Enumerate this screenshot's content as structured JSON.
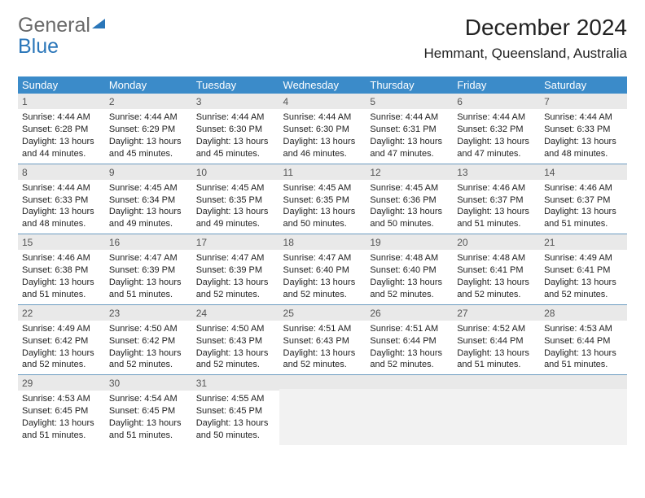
{
  "brand": {
    "word1": "General",
    "word2": "Blue"
  },
  "title": "December 2024",
  "location": "Hemmant, Queensland, Australia",
  "colors": {
    "header_bg": "#3b8bc9",
    "header_text": "#ffffff",
    "daynum_bg": "#e9e9e9",
    "row_border": "#6b9bc0",
    "brand_gray": "#6a6a6a",
    "brand_blue": "#2a76b9"
  },
  "weekdays": [
    "Sunday",
    "Monday",
    "Tuesday",
    "Wednesday",
    "Thursday",
    "Friday",
    "Saturday"
  ],
  "days": [
    {
      "n": "1",
      "sr": "Sunrise: 4:44 AM",
      "ss": "Sunset: 6:28 PM",
      "d1": "Daylight: 13 hours",
      "d2": "and 44 minutes."
    },
    {
      "n": "2",
      "sr": "Sunrise: 4:44 AM",
      "ss": "Sunset: 6:29 PM",
      "d1": "Daylight: 13 hours",
      "d2": "and 45 minutes."
    },
    {
      "n": "3",
      "sr": "Sunrise: 4:44 AM",
      "ss": "Sunset: 6:30 PM",
      "d1": "Daylight: 13 hours",
      "d2": "and 45 minutes."
    },
    {
      "n": "4",
      "sr": "Sunrise: 4:44 AM",
      "ss": "Sunset: 6:30 PM",
      "d1": "Daylight: 13 hours",
      "d2": "and 46 minutes."
    },
    {
      "n": "5",
      "sr": "Sunrise: 4:44 AM",
      "ss": "Sunset: 6:31 PM",
      "d1": "Daylight: 13 hours",
      "d2": "and 47 minutes."
    },
    {
      "n": "6",
      "sr": "Sunrise: 4:44 AM",
      "ss": "Sunset: 6:32 PM",
      "d1": "Daylight: 13 hours",
      "d2": "and 47 minutes."
    },
    {
      "n": "7",
      "sr": "Sunrise: 4:44 AM",
      "ss": "Sunset: 6:33 PM",
      "d1": "Daylight: 13 hours",
      "d2": "and 48 minutes."
    },
    {
      "n": "8",
      "sr": "Sunrise: 4:44 AM",
      "ss": "Sunset: 6:33 PM",
      "d1": "Daylight: 13 hours",
      "d2": "and 48 minutes."
    },
    {
      "n": "9",
      "sr": "Sunrise: 4:45 AM",
      "ss": "Sunset: 6:34 PM",
      "d1": "Daylight: 13 hours",
      "d2": "and 49 minutes."
    },
    {
      "n": "10",
      "sr": "Sunrise: 4:45 AM",
      "ss": "Sunset: 6:35 PM",
      "d1": "Daylight: 13 hours",
      "d2": "and 49 minutes."
    },
    {
      "n": "11",
      "sr": "Sunrise: 4:45 AM",
      "ss": "Sunset: 6:35 PM",
      "d1": "Daylight: 13 hours",
      "d2": "and 50 minutes."
    },
    {
      "n": "12",
      "sr": "Sunrise: 4:45 AM",
      "ss": "Sunset: 6:36 PM",
      "d1": "Daylight: 13 hours",
      "d2": "and 50 minutes."
    },
    {
      "n": "13",
      "sr": "Sunrise: 4:46 AM",
      "ss": "Sunset: 6:37 PM",
      "d1": "Daylight: 13 hours",
      "d2": "and 51 minutes."
    },
    {
      "n": "14",
      "sr": "Sunrise: 4:46 AM",
      "ss": "Sunset: 6:37 PM",
      "d1": "Daylight: 13 hours",
      "d2": "and 51 minutes."
    },
    {
      "n": "15",
      "sr": "Sunrise: 4:46 AM",
      "ss": "Sunset: 6:38 PM",
      "d1": "Daylight: 13 hours",
      "d2": "and 51 minutes."
    },
    {
      "n": "16",
      "sr": "Sunrise: 4:47 AM",
      "ss": "Sunset: 6:39 PM",
      "d1": "Daylight: 13 hours",
      "d2": "and 51 minutes."
    },
    {
      "n": "17",
      "sr": "Sunrise: 4:47 AM",
      "ss": "Sunset: 6:39 PM",
      "d1": "Daylight: 13 hours",
      "d2": "and 52 minutes."
    },
    {
      "n": "18",
      "sr": "Sunrise: 4:47 AM",
      "ss": "Sunset: 6:40 PM",
      "d1": "Daylight: 13 hours",
      "d2": "and 52 minutes."
    },
    {
      "n": "19",
      "sr": "Sunrise: 4:48 AM",
      "ss": "Sunset: 6:40 PM",
      "d1": "Daylight: 13 hours",
      "d2": "and 52 minutes."
    },
    {
      "n": "20",
      "sr": "Sunrise: 4:48 AM",
      "ss": "Sunset: 6:41 PM",
      "d1": "Daylight: 13 hours",
      "d2": "and 52 minutes."
    },
    {
      "n": "21",
      "sr": "Sunrise: 4:49 AM",
      "ss": "Sunset: 6:41 PM",
      "d1": "Daylight: 13 hours",
      "d2": "and 52 minutes."
    },
    {
      "n": "22",
      "sr": "Sunrise: 4:49 AM",
      "ss": "Sunset: 6:42 PM",
      "d1": "Daylight: 13 hours",
      "d2": "and 52 minutes."
    },
    {
      "n": "23",
      "sr": "Sunrise: 4:50 AM",
      "ss": "Sunset: 6:42 PM",
      "d1": "Daylight: 13 hours",
      "d2": "and 52 minutes."
    },
    {
      "n": "24",
      "sr": "Sunrise: 4:50 AM",
      "ss": "Sunset: 6:43 PM",
      "d1": "Daylight: 13 hours",
      "d2": "and 52 minutes."
    },
    {
      "n": "25",
      "sr": "Sunrise: 4:51 AM",
      "ss": "Sunset: 6:43 PM",
      "d1": "Daylight: 13 hours",
      "d2": "and 52 minutes."
    },
    {
      "n": "26",
      "sr": "Sunrise: 4:51 AM",
      "ss": "Sunset: 6:44 PM",
      "d1": "Daylight: 13 hours",
      "d2": "and 52 minutes."
    },
    {
      "n": "27",
      "sr": "Sunrise: 4:52 AM",
      "ss": "Sunset: 6:44 PM",
      "d1": "Daylight: 13 hours",
      "d2": "and 51 minutes."
    },
    {
      "n": "28",
      "sr": "Sunrise: 4:53 AM",
      "ss": "Sunset: 6:44 PM",
      "d1": "Daylight: 13 hours",
      "d2": "and 51 minutes."
    },
    {
      "n": "29",
      "sr": "Sunrise: 4:53 AM",
      "ss": "Sunset: 6:45 PM",
      "d1": "Daylight: 13 hours",
      "d2": "and 51 minutes."
    },
    {
      "n": "30",
      "sr": "Sunrise: 4:54 AM",
      "ss": "Sunset: 6:45 PM",
      "d1": "Daylight: 13 hours",
      "d2": "and 51 minutes."
    },
    {
      "n": "31",
      "sr": "Sunrise: 4:55 AM",
      "ss": "Sunset: 6:45 PM",
      "d1": "Daylight: 13 hours",
      "d2": "and 50 minutes."
    }
  ]
}
